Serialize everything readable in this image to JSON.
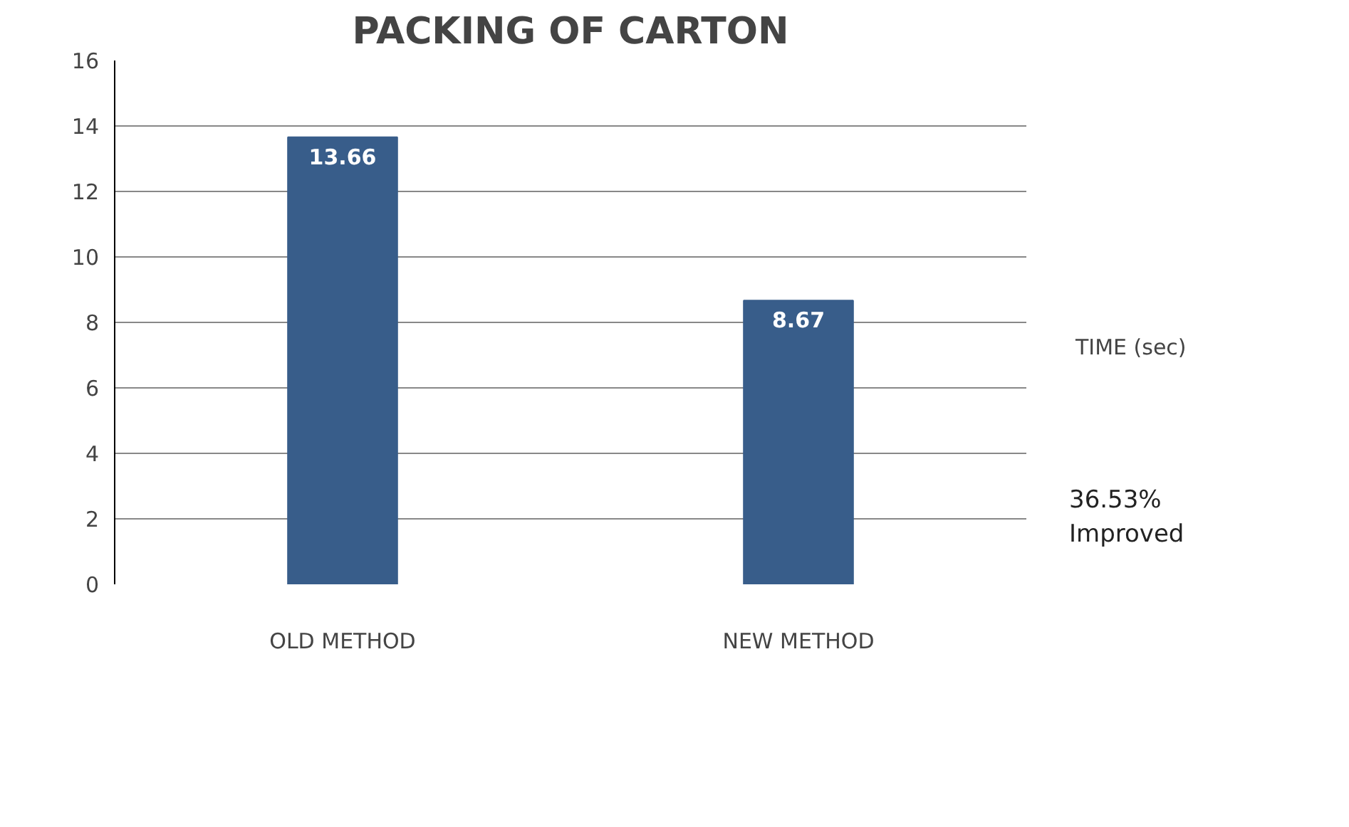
{
  "chart_data": {
    "type": "bar",
    "title": "PACKING OF CARTON",
    "categories": [
      "OLD METHOD",
      "NEW METHOD"
    ],
    "series": [
      {
        "name": "TIME (sec)",
        "color": "#385d8a",
        "values": [
          13.66,
          8.67
        ]
      }
    ],
    "ylim": [
      0,
      16
    ],
    "yticks": [
      0,
      2,
      4,
      6,
      8,
      10,
      12,
      14,
      16
    ],
    "grid": "y",
    "legend": "right",
    "data_labels": true,
    "annotations": [
      "36.53%\nImproved"
    ]
  }
}
